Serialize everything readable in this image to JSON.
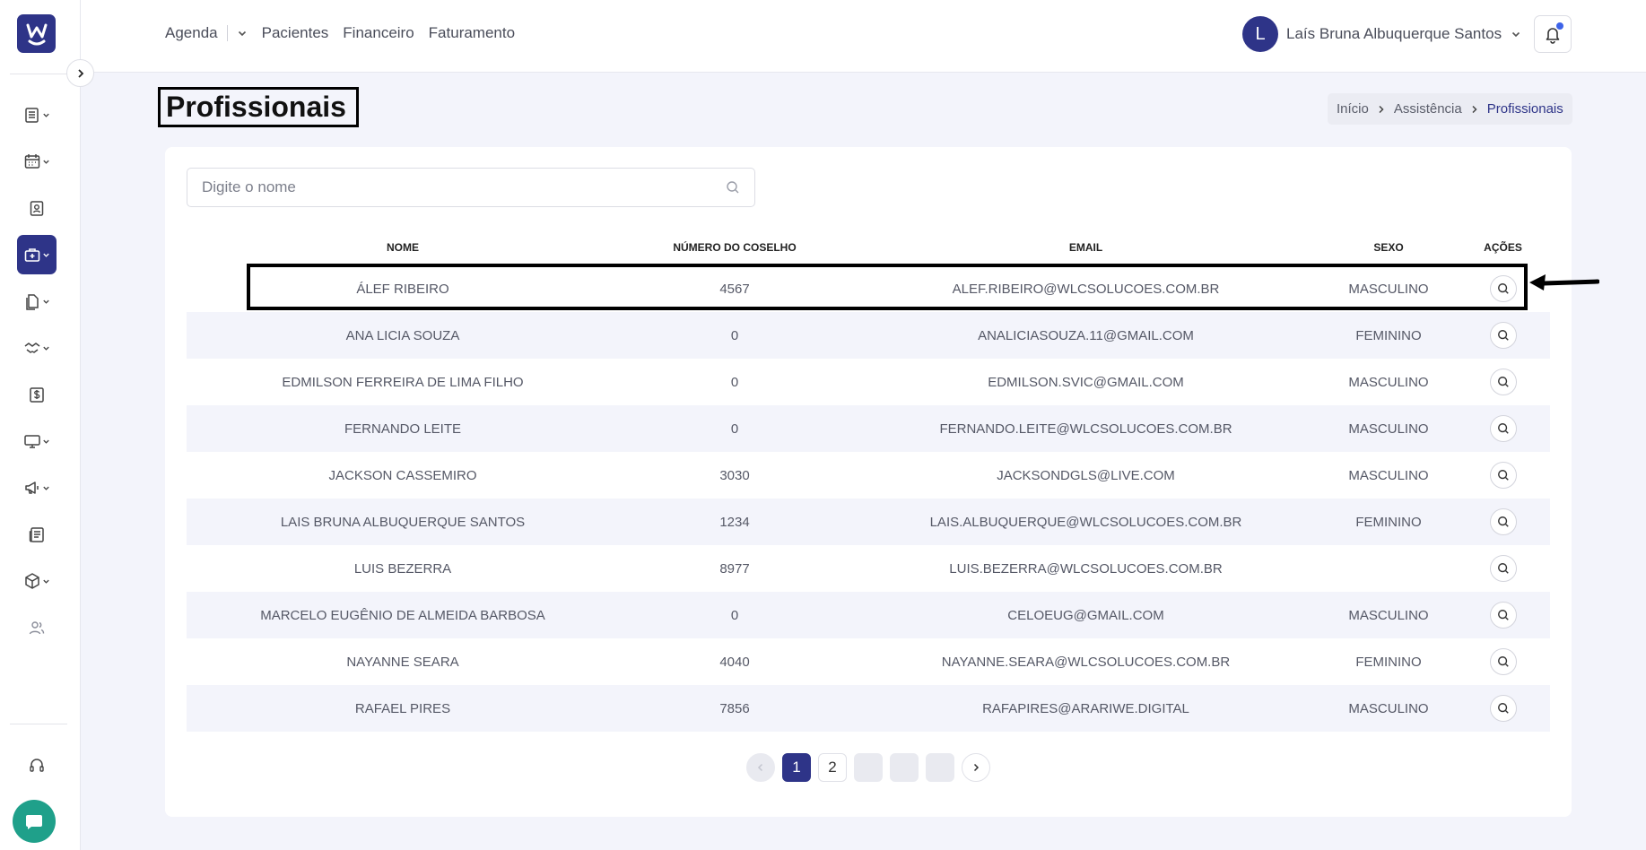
{
  "header": {
    "nav": [
      {
        "label": "Agenda"
      },
      {
        "label": "Pacientes"
      },
      {
        "label": "Financeiro"
      },
      {
        "label": "Faturamento"
      }
    ],
    "user": {
      "initial": "L",
      "name": "Laís Bruna Albuquerque Santos"
    }
  },
  "page": {
    "title": "Profissionais",
    "breadcrumb": [
      "Início",
      "Assistência",
      "Profissionais"
    ]
  },
  "search": {
    "placeholder": "Digite o nome",
    "value": ""
  },
  "table": {
    "columns": [
      "NOME",
      "NÚMERO DO COSELHO",
      "EMAIL",
      "SEXO",
      "AÇÕES"
    ],
    "rows": [
      {
        "nome": "ÁLEF RIBEIRO",
        "numero": "4567",
        "email": "ALEF.RIBEIRO@WLCSOLUCOES.COM.BR",
        "sexo": "MASCULINO"
      },
      {
        "nome": "ANA LICIA SOUZA",
        "numero": "0",
        "email": "ANALICIASOUZA.11@GMAIL.COM",
        "sexo": "FEMININO"
      },
      {
        "nome": "EDMILSON FERREIRA DE LIMA FILHO",
        "numero": "0",
        "email": "EDMILSON.SVIC@GMAIL.COM",
        "sexo": "MASCULINO"
      },
      {
        "nome": "FERNANDO LEITE",
        "numero": "0",
        "email": "FERNANDO.LEITE@WLCSOLUCOES.COM.BR",
        "sexo": "MASCULINO"
      },
      {
        "nome": "JACKSON CASSEMIRO",
        "numero": "3030",
        "email": "JACKSONDGLS@LIVE.COM",
        "sexo": "MASCULINO"
      },
      {
        "nome": "LAIS BRUNA ALBUQUERQUE SANTOS",
        "numero": "1234",
        "email": "LAIS.ALBUQUERQUE@WLCSOLUCOES.COM.BR",
        "sexo": "FEMININO"
      },
      {
        "nome": "LUIS BEZERRA",
        "numero": "8977",
        "email": "LUIS.BEZERRA@WLCSOLUCOES.COM.BR",
        "sexo": ""
      },
      {
        "nome": "MARCELO EUGÊNIO DE ALMEIDA BARBOSA",
        "numero": "0",
        "email": "CELOEUG@GMAIL.COM",
        "sexo": "MASCULINO"
      },
      {
        "nome": "NAYANNE SEARA",
        "numero": "4040",
        "email": "NAYANNE.SEARA@WLCSOLUCOES.COM.BR",
        "sexo": "FEMININO"
      },
      {
        "nome": "RAFAEL PIRES",
        "numero": "7856",
        "email": "RAFAPIRES@ARARIWE.DIGITAL",
        "sexo": "MASCULINO"
      }
    ]
  },
  "pagination": {
    "pages": [
      "1",
      "2"
    ],
    "current": "1"
  },
  "sidebar": {
    "icons": [
      "clipboard-list-icon",
      "calendar-icon",
      "id-badge-icon",
      "medical-briefcase-icon",
      "documents-icon",
      "handshake-icon",
      "dollar-icon",
      "monitor-icon",
      "megaphone-icon",
      "newspaper-icon",
      "box-icon",
      "users-icon",
      "headset-icon",
      "chat-icon"
    ]
  },
  "colors": {
    "primary": "#2e3488",
    "chat": "#1fa08a",
    "background": "#f3f4fb"
  }
}
